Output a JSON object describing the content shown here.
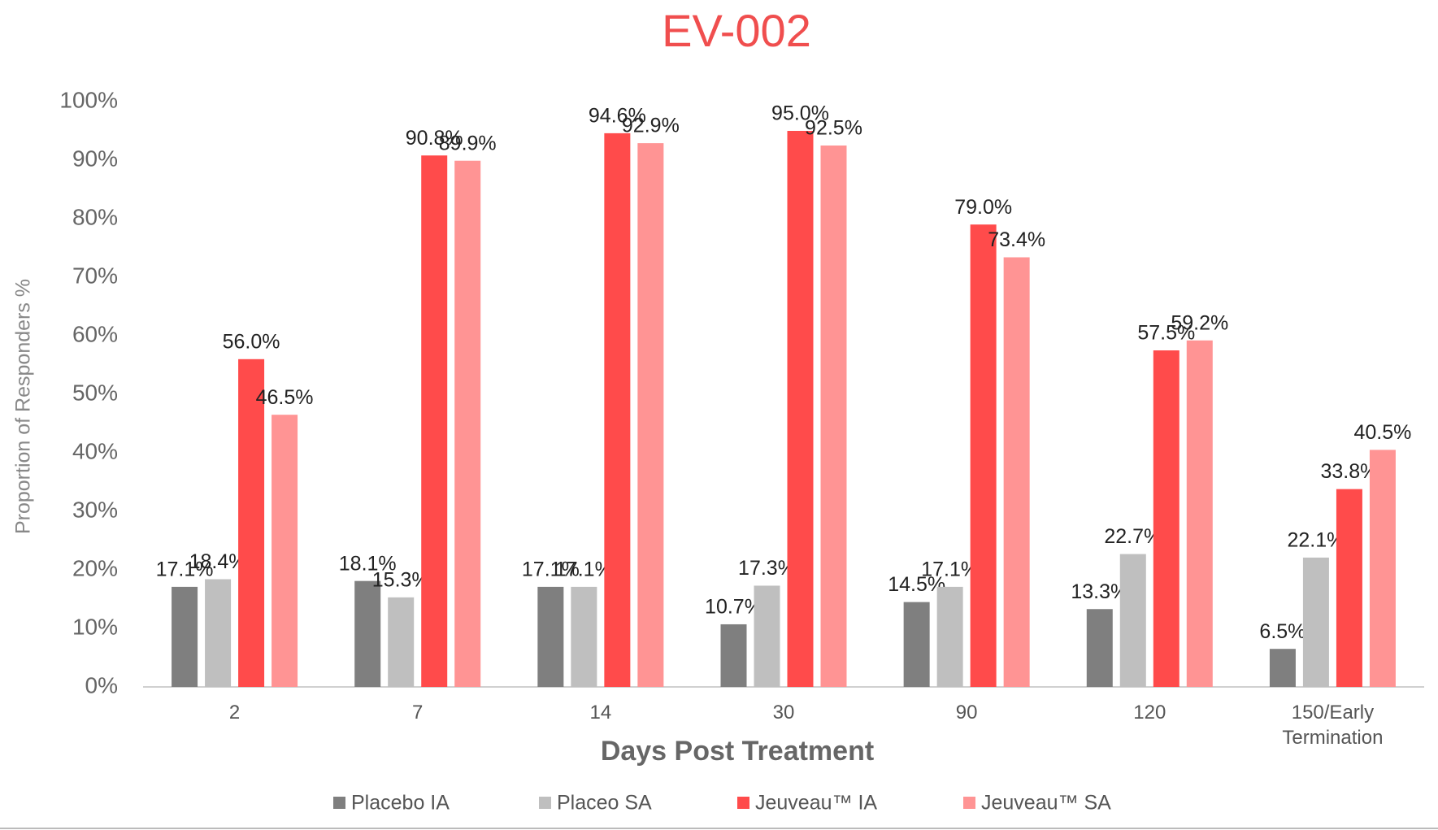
{
  "chart_data": {
    "type": "bar",
    "title": "EV-002",
    "x_label": "Days Post Treatment",
    "y_label": "Proportion of Responders %",
    "categories": [
      "2",
      "7",
      "14",
      "30",
      "90",
      "120",
      "150/Early Termination"
    ],
    "series": [
      {
        "name": "Placebo IA",
        "color": "#7f7f7f",
        "values": [
          17.1,
          18.1,
          17.1,
          10.7,
          14.5,
          13.3,
          6.5
        ],
        "value_labels": [
          "17.1%",
          "18.1%",
          "17.1%",
          "10.7%",
          "14.5%",
          "13.3%",
          "6.5%"
        ]
      },
      {
        "name": "Placeo SA",
        "color": "#bfbfbf",
        "values": [
          18.4,
          15.3,
          17.1,
          17.3,
          17.1,
          22.7,
          22.1
        ],
        "value_labels": [
          "18.4%",
          "15.3%",
          "17.1%",
          "17.3%",
          "17.1%",
          "22.7%",
          "22.1%"
        ]
      },
      {
        "name": "Jeuveau™ IA",
        "color": "#ff4b4b",
        "values": [
          56.0,
          90.8,
          94.6,
          95.0,
          79.0,
          57.5,
          33.8
        ],
        "value_labels": [
          "56.0%",
          "90.8%",
          "94.6%",
          "95.0%",
          "79.0%",
          "57.5%",
          "33.8%"
        ]
      },
      {
        "name": "Jeuveau™ SA",
        "color": "#ff9494",
        "values": [
          46.5,
          89.9,
          92.9,
          92.5,
          73.4,
          59.2,
          40.5
        ],
        "value_labels": [
          "46.5%",
          "89.9%",
          "92.9%",
          "92.5%",
          "73.4%",
          "59.2%",
          "40.5%"
        ]
      }
    ],
    "ylim": [
      0,
      100
    ],
    "yticks": [
      {
        "value": 0,
        "label": "0%"
      },
      {
        "value": 10,
        "label": "10%"
      },
      {
        "value": 20,
        "label": "20%"
      },
      {
        "value": 30,
        "label": "30%"
      },
      {
        "value": 40,
        "label": "40%"
      },
      {
        "value": 50,
        "label": "50%"
      },
      {
        "value": 60,
        "label": "60%"
      },
      {
        "value": 70,
        "label": "70%"
      },
      {
        "value": 80,
        "label": "80%"
      },
      {
        "value": 90,
        "label": "90%"
      },
      {
        "value": 100,
        "label": "100%"
      }
    ],
    "grid": false,
    "legend": "bottom",
    "title_color": "#f04e4e"
  }
}
